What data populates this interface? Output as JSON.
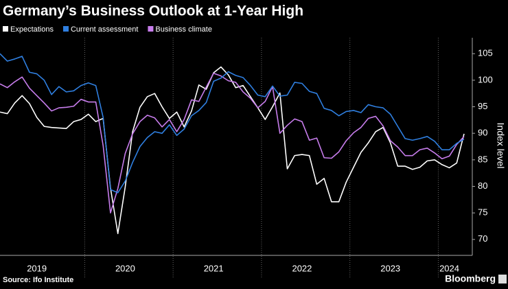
{
  "chart_data": {
    "type": "line",
    "title": "Germany’s Business Outlook at 1-Year High",
    "source": "Source: Ifo Institute",
    "brand": "Bloomberg",
    "y_label": "Index level",
    "legend_position": "top-left",
    "categories": [
      null,
      null,
      null,
      null,
      null,
      "2019",
      null,
      null,
      null,
      null,
      null,
      null,
      null,
      null,
      null,
      null,
      null,
      "2020",
      null,
      null,
      null,
      null,
      null,
      null,
      null,
      null,
      null,
      null,
      null,
      "2021",
      null,
      null,
      null,
      null,
      null,
      null,
      null,
      null,
      null,
      null,
      null,
      "2022",
      null,
      null,
      null,
      null,
      null,
      null,
      null,
      null,
      null,
      null,
      null,
      "2023",
      null,
      null,
      null,
      null,
      null,
      null,
      null,
      "2024",
      null,
      null
    ],
    "series": [
      {
        "name": "Expectations",
        "color": "#ffffff",
        "values": [
          94.0,
          93.7,
          95.7,
          97.1,
          95.6,
          93.0,
          91.3,
          91.1,
          91.0,
          90.9,
          92.2,
          92.6,
          93.6,
          92.2,
          92.8,
          79.7,
          71.1,
          79.9,
          90.3,
          94.9,
          96.9,
          97.5,
          95.0,
          92.8,
          94.0,
          91.2,
          94.2,
          99.1,
          98.3,
          101.4,
          102.5,
          101.0,
          98.6,
          99.0,
          96.9,
          94.8,
          92.6,
          95.0,
          97.6,
          83.3,
          85.8,
          86.0,
          85.8,
          80.4,
          81.5,
          77.1,
          77.1,
          80.8,
          83.6,
          86.4,
          88.2,
          90.3,
          91.1,
          88.2,
          83.8,
          83.8,
          83.2,
          83.6,
          84.8,
          85.0,
          84.1,
          83.5,
          84.4,
          89.9
        ]
      },
      {
        "name": "Current assessment",
        "color": "#2f7fe0",
        "values": [
          105.0,
          103.6,
          104.0,
          104.5,
          101.5,
          101.2,
          100.0,
          97.3,
          98.8,
          97.8,
          98.0,
          99.0,
          99.5,
          99.0,
          93.0,
          79.4,
          78.8,
          81.0,
          84.5,
          87.5,
          89.2,
          90.3,
          90.0,
          91.6,
          89.6,
          90.8,
          93.3,
          94.3,
          95.8,
          99.8,
          100.4,
          101.6,
          100.9,
          100.5,
          99.0,
          97.2,
          96.9,
          98.9,
          97.0,
          97.2,
          99.6,
          99.4,
          97.9,
          97.5,
          94.7,
          94.3,
          93.3,
          94.1,
          94.3,
          93.9,
          95.4,
          95.0,
          94.8,
          93.6,
          91.3,
          89.0,
          88.7,
          89.0,
          89.4,
          88.5,
          86.9,
          86.9,
          88.1,
          88.9
        ]
      },
      {
        "name": "Business climate",
        "color": "#c77dec",
        "values": [
          99.3,
          98.6,
          99.7,
          100.6,
          98.5,
          97.1,
          95.7,
          94.2,
          94.8,
          94.9,
          95.1,
          96.4,
          95.9,
          95.9,
          87.7,
          75.0,
          79.6,
          86.2,
          89.9,
          92.2,
          93.4,
          92.9,
          91.2,
          92.6,
          90.3,
          92.6,
          96.3,
          96.0,
          98.7,
          101.3,
          100.8,
          99.9,
          99.6,
          97.8,
          96.6,
          94.8,
          96.0,
          98.8,
          90.0,
          91.5,
          92.7,
          92.2,
          88.7,
          89.1,
          85.4,
          85.3,
          86.5,
          88.6,
          90.1,
          91.1,
          92.8,
          93.2,
          91.4,
          88.6,
          87.4,
          85.8,
          85.8,
          86.9,
          87.2,
          86.3,
          85.2,
          85.7,
          87.9,
          89.4
        ]
      }
    ],
    "ylim": [
      67,
      108
    ],
    "yticks": [
      70,
      75,
      80,
      85,
      90,
      95,
      100,
      105
    ]
  }
}
